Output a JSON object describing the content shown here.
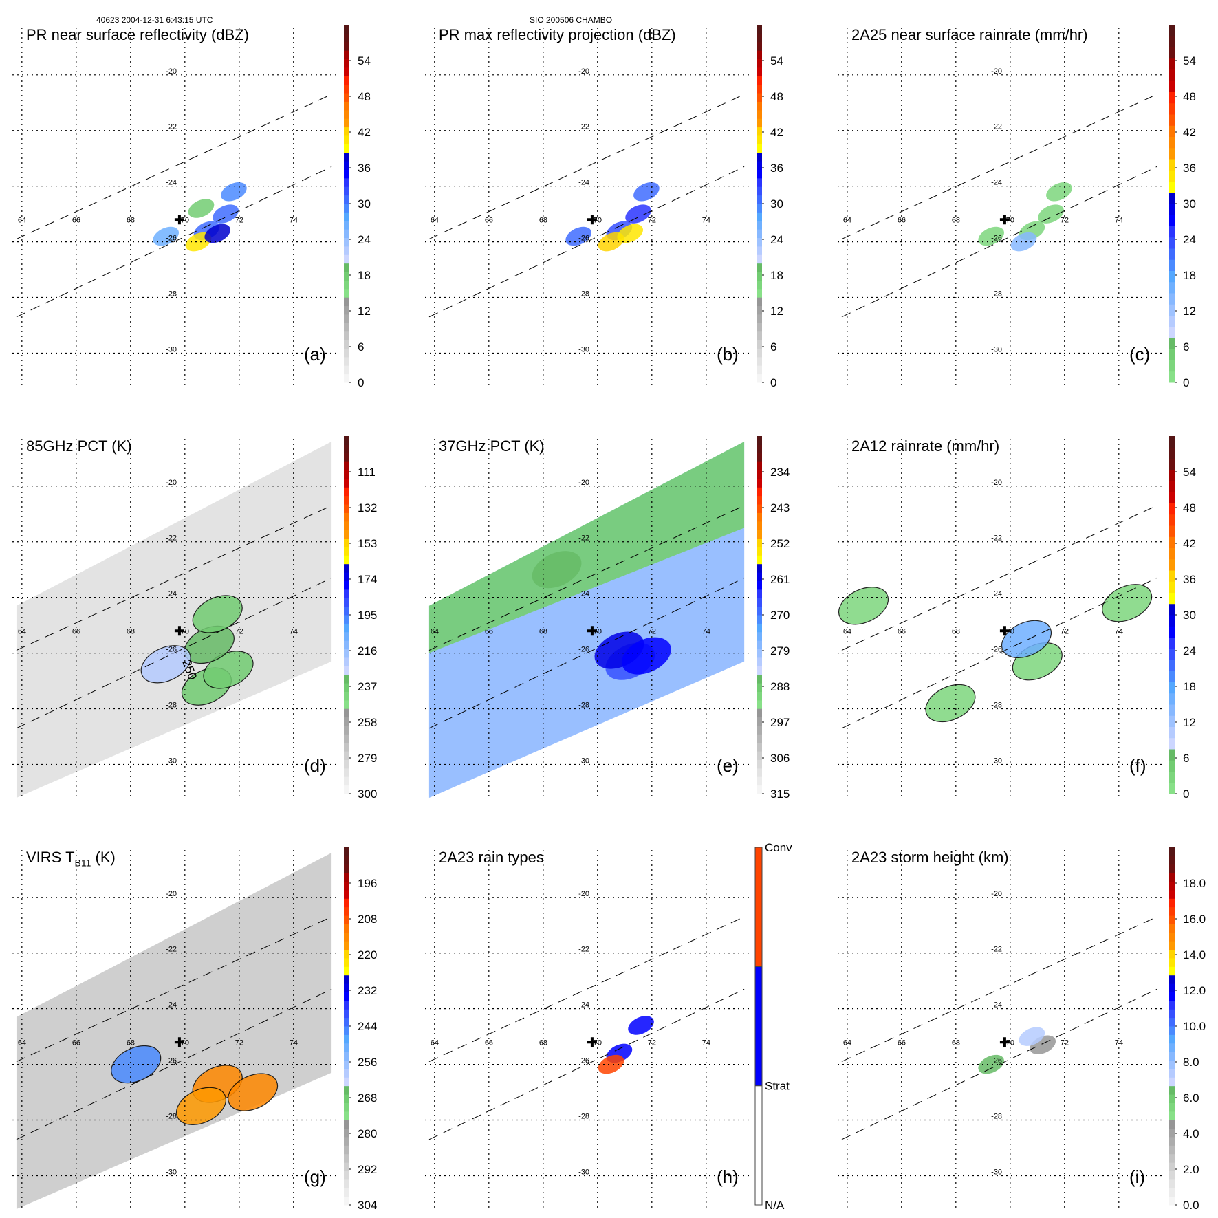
{
  "header": {
    "orbit_time": "40623 2004-12-31 6:43:15 UTC",
    "storm_id": "SIO 200506 CHAMBO"
  },
  "palette": {
    "bins": [
      "#f5f5f5",
      "#ececec",
      "#e3e3e3",
      "#d9d9d9",
      "#cfcfcf",
      "#c4c4c4",
      "#b8b8b8",
      "#acacac",
      "#a2a2a2",
      "#969696",
      "#88e088",
      "#7dd67d",
      "#72cc72",
      "#66bb66",
      "#ccd6ff",
      "#b5cbff",
      "#9ec2ff",
      "#87b8ff",
      "#6fb0ff",
      "#55a8ff",
      "#4a8aff",
      "#3f6cff",
      "#3650ff",
      "#2a35ff",
      "#0000ff",
      "#0000e6",
      "#0000cc",
      "#ffff00",
      "#ffe600",
      "#ffd400",
      "#ff9900",
      "#ff8800",
      "#ff7700",
      "#ff5500",
      "#ff3c00",
      "#ff2200",
      "#cc0000",
      "#b80000",
      "#a30000",
      "#6b0f0f",
      "#5f1212",
      "#551515"
    ]
  },
  "chart_data": [
    {
      "id": "a",
      "type": "heatmap",
      "title": "PR near surface reflectivity (dBZ)",
      "panel_label": "(a)",
      "colorbar": {
        "ticks": [
          "0",
          "6",
          "12",
          "18",
          "24",
          "30",
          "36",
          "42",
          "48",
          "54"
        ],
        "range": [
          0,
          60
        ],
        "style": "pr"
      },
      "lon_ticks": [
        "64",
        "66",
        "68",
        "70",
        "72",
        "74"
      ],
      "lat_ticks": [
        "-20",
        "-22",
        "-24",
        "-26",
        "-28",
        "-30"
      ],
      "swath": "pr",
      "storm_center": {
        "lon": 69.8,
        "lat": -25.2
      },
      "features": [
        {
          "lon": 70.8,
          "lat": -25.6,
          "value": 30
        },
        {
          "lon": 71.5,
          "lat": -25.0,
          "value": 31
        },
        {
          "lon": 71.8,
          "lat": -24.2,
          "value": 29
        },
        {
          "lon": 69.3,
          "lat": -25.8,
          "value": 27
        },
        {
          "lon": 70.5,
          "lat": -26.0,
          "value": 40
        },
        {
          "lon": 71.2,
          "lat": -25.7,
          "value": 38
        },
        {
          "lon": 70.6,
          "lat": -24.8,
          "value": 18
        }
      ]
    },
    {
      "id": "b",
      "type": "heatmap",
      "title": "PR max reflectivity projection (dBZ)",
      "panel_label": "(b)",
      "colorbar": {
        "ticks": [
          "0",
          "6",
          "12",
          "18",
          "24",
          "30",
          "36",
          "42",
          "48",
          "54"
        ],
        "range": [
          0,
          60
        ],
        "style": "pr"
      },
      "lon_ticks": [
        "64",
        "66",
        "68",
        "70",
        "72",
        "74"
      ],
      "lat_ticks": [
        "-20",
        "-22",
        "-24",
        "-26",
        "-28",
        "-30"
      ],
      "swath": "pr",
      "storm_center": {
        "lon": 69.8,
        "lat": -25.2
      },
      "features": [
        {
          "lon": 70.8,
          "lat": -25.6,
          "value": 32
        },
        {
          "lon": 71.5,
          "lat": -25.0,
          "value": 33
        },
        {
          "lon": 71.8,
          "lat": -24.2,
          "value": 31
        },
        {
          "lon": 69.3,
          "lat": -25.8,
          "value": 30
        },
        {
          "lon": 70.5,
          "lat": -26.0,
          "value": 42
        },
        {
          "lon": 71.2,
          "lat": -25.7,
          "value": 40
        }
      ]
    },
    {
      "id": "c",
      "type": "heatmap",
      "title": "2A25 near surface rainrate (mm/hr)",
      "panel_label": "(c)",
      "colorbar": {
        "ticks": [
          "0",
          "6",
          "12",
          "18",
          "24",
          "30",
          "36",
          "42",
          "48",
          "54"
        ],
        "range": [
          0,
          60
        ],
        "style": "rain"
      },
      "lon_ticks": [
        "64",
        "66",
        "68",
        "70",
        "72",
        "74"
      ],
      "lat_ticks": [
        "-20",
        "-22",
        "-24",
        "-26",
        "-28",
        "-30"
      ],
      "swath": "pr",
      "storm_center": {
        "lon": 69.8,
        "lat": -25.2
      },
      "features": [
        {
          "lon": 70.8,
          "lat": -25.6,
          "value": 3
        },
        {
          "lon": 71.5,
          "lat": -25.0,
          "value": 3
        },
        {
          "lon": 71.8,
          "lat": -24.2,
          "value": 2
        },
        {
          "lon": 69.3,
          "lat": -25.8,
          "value": 2
        },
        {
          "lon": 70.5,
          "lat": -26.0,
          "value": 14
        }
      ]
    },
    {
      "id": "d",
      "type": "heatmap",
      "title": "85GHz PCT (K)",
      "panel_label": "(d)",
      "colorbar": {
        "ticks": [
          "300",
          "279",
          "258",
          "237",
          "216",
          "195",
          "174",
          "153",
          "132",
          "111"
        ],
        "range": [
          300,
          90
        ],
        "style": "pr"
      },
      "lon_ticks": [
        "64",
        "66",
        "68",
        "70",
        "72",
        "74"
      ],
      "lat_ticks": [
        "-20",
        "-22",
        "-24",
        "-26",
        "-28",
        "-30"
      ],
      "swath": "tmi",
      "storm_center": {
        "lon": 69.8,
        "lat": -25.2
      },
      "contour_label": "250",
      "features": [
        {
          "lon": 70.8,
          "lat": -27.2,
          "value": 240
        },
        {
          "lon": 71.6,
          "lat": -26.6,
          "value": 240
        },
        {
          "lon": 70.9,
          "lat": -25.7,
          "value": 235
        },
        {
          "lon": 71.2,
          "lat": -24.6,
          "value": 238
        },
        {
          "lon": 69.3,
          "lat": -26.4,
          "value": 225
        }
      ]
    },
    {
      "id": "e",
      "type": "heatmap",
      "title": "37GHz PCT (K)",
      "panel_label": "(e)",
      "colorbar": {
        "ticks": [
          "315",
          "306",
          "297",
          "288",
          "279",
          "270",
          "261",
          "252",
          "243",
          "234"
        ],
        "range": [
          315,
          225
        ],
        "style": "pr"
      },
      "lon_ticks": [
        "64",
        "66",
        "68",
        "70",
        "72",
        "74"
      ],
      "lat_ticks": [
        "-20",
        "-22",
        "-24",
        "-26",
        "-28",
        "-30"
      ],
      "swath": "tmi",
      "storm_center": {
        "lon": 69.8,
        "lat": -25.2
      },
      "features": [
        {
          "lon": 71.2,
          "lat": -26.3,
          "value": 266
        },
        {
          "lon": 70.8,
          "lat": -25.9,
          "value": 260
        },
        {
          "lon": 71.8,
          "lat": -26.1,
          "value": 262
        },
        {
          "lon": 68.5,
          "lat": -23.0,
          "value": 287
        }
      ]
    },
    {
      "id": "f",
      "type": "heatmap",
      "title": "2A12 rainrate (mm/hr)",
      "panel_label": "(f)",
      "colorbar": {
        "ticks": [
          "0",
          "6",
          "12",
          "18",
          "24",
          "30",
          "36",
          "42",
          "48",
          "54"
        ],
        "range": [
          0,
          60
        ],
        "style": "rain"
      },
      "lon_ticks": [
        "64",
        "66",
        "68",
        "70",
        "72",
        "74"
      ],
      "lat_ticks": [
        "-20",
        "-22",
        "-24",
        "-26",
        "-28",
        "-30"
      ],
      "swath": "none",
      "storm_center": {
        "lon": 69.8,
        "lat": -25.2
      },
      "features": [
        {
          "lon": 71.0,
          "lat": -26.3,
          "value": 3
        },
        {
          "lon": 70.6,
          "lat": -25.5,
          "value": 16
        },
        {
          "lon": 74.3,
          "lat": -24.2,
          "value": 3
        },
        {
          "lon": 67.8,
          "lat": -27.8,
          "value": 3
        },
        {
          "lon": 64.6,
          "lat": -24.3,
          "value": 3
        }
      ]
    },
    {
      "id": "g",
      "type": "heatmap",
      "title_main": "VIRS T",
      "title_sub": "B11",
      "title_tail": " (K)",
      "panel_label": "(g)",
      "colorbar": {
        "ticks": [
          "304",
          "292",
          "280",
          "268",
          "256",
          "244",
          "232",
          "220",
          "208",
          "196"
        ],
        "range": [
          304,
          184
        ],
        "style": "pr"
      },
      "lon_ticks": [
        "64",
        "66",
        "68",
        "70",
        "72",
        "74"
      ],
      "lat_ticks": [
        "-20",
        "-22",
        "-24",
        "-26",
        "-28",
        "-30"
      ],
      "swath": "virs",
      "storm_center": {
        "lon": 69.8,
        "lat": -25.2
      },
      "features": [
        {
          "lon": 71.2,
          "lat": -26.7,
          "value": 215
        },
        {
          "lon": 70.6,
          "lat": -27.5,
          "value": 218
        },
        {
          "lon": 72.5,
          "lat": -27.0,
          "value": 214
        },
        {
          "lon": 68.2,
          "lat": -26.0,
          "value": 245
        }
      ]
    },
    {
      "id": "h",
      "type": "heatmap",
      "title": "2A23 rain types",
      "panel_label": "(h)",
      "colorbar": {
        "categories": [
          "N/A",
          "Strat",
          "Conv"
        ],
        "colors": [
          "#ffffff",
          "#0000ff",
          "#ff4400"
        ],
        "style": "categorical"
      },
      "lon_ticks": [
        "64",
        "66",
        "68",
        "70",
        "72",
        "74"
      ],
      "lat_ticks": [
        "-20",
        "-22",
        "-24",
        "-26",
        "-28",
        "-30"
      ],
      "swath": "pr",
      "storm_center": {
        "lon": 69.8,
        "lat": -25.2
      },
      "features": [
        {
          "lon": 70.8,
          "lat": -25.6,
          "value": "Strat"
        },
        {
          "lon": 71.6,
          "lat": -24.6,
          "value": "Strat"
        },
        {
          "lon": 70.5,
          "lat": -26.0,
          "value": "Conv"
        }
      ]
    },
    {
      "id": "i",
      "type": "heatmap",
      "title": "2A23 storm height (km)",
      "panel_label": "(i)",
      "colorbar": {
        "ticks": [
          "0.0",
          "2.0",
          "4.0",
          "6.0",
          "8.0",
          "10.0",
          "12.0",
          "14.0",
          "16.0",
          "18.0"
        ],
        "range": [
          0,
          20
        ],
        "style": "pr"
      },
      "lon_ticks": [
        "64",
        "66",
        "68",
        "70",
        "72",
        "74"
      ],
      "lat_ticks": [
        "-20",
        "-22",
        "-24",
        "-26",
        "-28",
        "-30"
      ],
      "swath": "pr",
      "storm_center": {
        "lon": 69.8,
        "lat": -25.2
      },
      "features": [
        {
          "lon": 71.2,
          "lat": -25.3,
          "value": 4.5
        },
        {
          "lon": 70.8,
          "lat": -25.0,
          "value": 7.5
        },
        {
          "lon": 69.3,
          "lat": -26.0,
          "value": 6.5
        }
      ]
    }
  ]
}
